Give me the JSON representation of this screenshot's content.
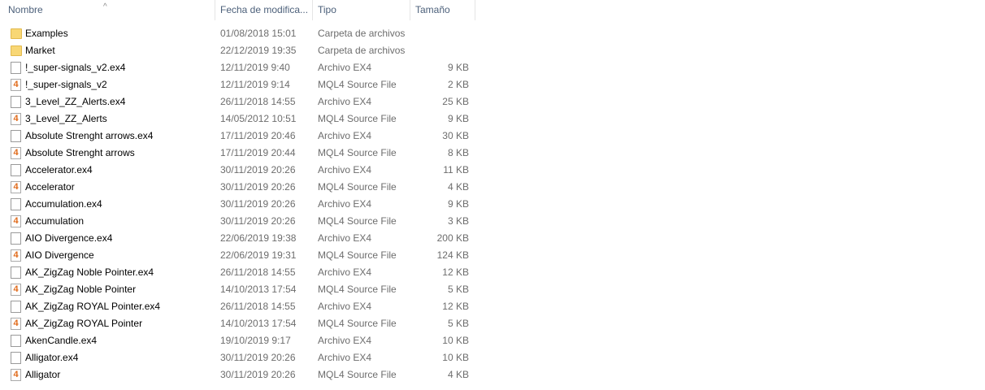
{
  "columns": {
    "name": "Nombre",
    "date": "Fecha de modifica...",
    "type": "Tipo",
    "size": "Tamaño"
  },
  "mql_icon_glyph": "4",
  "files": [
    {
      "name": "Examples",
      "date": "01/08/2018 15:01",
      "type": "Carpeta de archivos",
      "size": "",
      "icon": "folder"
    },
    {
      "name": "Market",
      "date": "22/12/2019 19:35",
      "type": "Carpeta de archivos",
      "size": "",
      "icon": "folder"
    },
    {
      "name": "!_super-signals_v2.ex4",
      "date": "12/11/2019 9:40",
      "type": "Archivo EX4",
      "size": "9 KB",
      "icon": "file"
    },
    {
      "name": "!_super-signals_v2",
      "date": "12/11/2019 9:14",
      "type": "MQL4 Source File",
      "size": "2 KB",
      "icon": "mq"
    },
    {
      "name": "3_Level_ZZ_Alerts.ex4",
      "date": "26/11/2018 14:55",
      "type": "Archivo EX4",
      "size": "25 KB",
      "icon": "file"
    },
    {
      "name": "3_Level_ZZ_Alerts",
      "date": "14/05/2012 10:51",
      "type": "MQL4 Source File",
      "size": "9 KB",
      "icon": "mq"
    },
    {
      "name": "Absolute Strenght arrows.ex4",
      "date": "17/11/2019 20:46",
      "type": "Archivo EX4",
      "size": "30 KB",
      "icon": "file"
    },
    {
      "name": "Absolute Strenght arrows",
      "date": "17/11/2019 20:44",
      "type": "MQL4 Source File",
      "size": "8 KB",
      "icon": "mq"
    },
    {
      "name": "Accelerator.ex4",
      "date": "30/11/2019 20:26",
      "type": "Archivo EX4",
      "size": "11 KB",
      "icon": "file"
    },
    {
      "name": "Accelerator",
      "date": "30/11/2019 20:26",
      "type": "MQL4 Source File",
      "size": "4 KB",
      "icon": "mq"
    },
    {
      "name": "Accumulation.ex4",
      "date": "30/11/2019 20:26",
      "type": "Archivo EX4",
      "size": "9 KB",
      "icon": "file"
    },
    {
      "name": "Accumulation",
      "date": "30/11/2019 20:26",
      "type": "MQL4 Source File",
      "size": "3 KB",
      "icon": "mq"
    },
    {
      "name": "AIO Divergence.ex4",
      "date": "22/06/2019 19:38",
      "type": "Archivo EX4",
      "size": "200 KB",
      "icon": "file"
    },
    {
      "name": "AIO Divergence",
      "date": "22/06/2019 19:31",
      "type": "MQL4 Source File",
      "size": "124 KB",
      "icon": "mq"
    },
    {
      "name": "AK_ZigZag Noble Pointer.ex4",
      "date": "26/11/2018 14:55",
      "type": "Archivo EX4",
      "size": "12 KB",
      "icon": "file"
    },
    {
      "name": "AK_ZigZag Noble Pointer",
      "date": "14/10/2013 17:54",
      "type": "MQL4 Source File",
      "size": "5 KB",
      "icon": "mq"
    },
    {
      "name": "AK_ZigZag ROYAL Pointer.ex4",
      "date": "26/11/2018 14:55",
      "type": "Archivo EX4",
      "size": "12 KB",
      "icon": "file"
    },
    {
      "name": "AK_ZigZag ROYAL Pointer",
      "date": "14/10/2013 17:54",
      "type": "MQL4 Source File",
      "size": "5 KB",
      "icon": "mq"
    },
    {
      "name": "AkenCandle.ex4",
      "date": "19/10/2019 9:17",
      "type": "Archivo EX4",
      "size": "10 KB",
      "icon": "file"
    },
    {
      "name": "Alligator.ex4",
      "date": "30/11/2019 20:26",
      "type": "Archivo EX4",
      "size": "10 KB",
      "icon": "file"
    },
    {
      "name": "Alligator",
      "date": "30/11/2019 20:26",
      "type": "MQL4 Source File",
      "size": "4 KB",
      "icon": "mq"
    }
  ]
}
